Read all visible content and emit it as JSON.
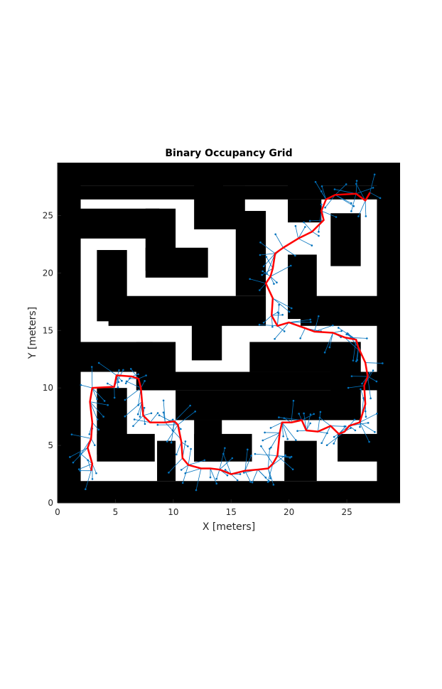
{
  "chart_data": {
    "type": "occupancy-grid-map",
    "title": "Binary Occupancy Grid",
    "xlabel": "X [meters]",
    "ylabel": "Y [meters]",
    "xlim": [
      0,
      29.6
    ],
    "ylim": [
      0,
      29.6
    ],
    "xticks": [
      0,
      5,
      10,
      15,
      20,
      25
    ],
    "yticks": [
      0,
      5,
      10,
      15,
      20,
      25
    ],
    "grid": false,
    "colors": {
      "occupied": "#000000",
      "free": "#ffffff",
      "tree": "#0072bd",
      "path": "#ff0000"
    },
    "obstacles": [
      {
        "shape": "rect",
        "x0": 0,
        "y0": 0,
        "x1": 29.6,
        "y1": 1.9
      },
      {
        "shape": "rect",
        "x0": 0,
        "y0": 27.6,
        "x1": 29.6,
        "y1": 29.6
      },
      {
        "shape": "rect",
        "x0": 0,
        "y0": 0,
        "x1": 2.0,
        "y1": 29.6
      },
      {
        "shape": "rect",
        "x0": 27.6,
        "y0": 0,
        "x1": 29.6,
        "y1": 29.6
      },
      {
        "shape": "rect",
        "x0": 0,
        "y0": 27.6,
        "x1": 29.6,
        "y1": 26.4
      },
      {
        "shape": "rect",
        "x0": 11.8,
        "y0": 29.6,
        "x1": 14.3,
        "y1": 26.4
      },
      {
        "shape": "rect",
        "x0": 19.9,
        "y0": 29.6,
        "x1": 22.8,
        "y1": 26.4
      },
      {
        "shape": "rect",
        "x0": 0,
        "y0": 25.6,
        "x1": 8.8,
        "y1": 23.0
      },
      {
        "shape": "rect",
        "x0": 7.6,
        "y0": 25.6,
        "x1": 10.2,
        "y1": 20.2
      },
      {
        "shape": "rect",
        "x0": 7.6,
        "y0": 22.2,
        "x1": 13.0,
        "y1": 19.6
      },
      {
        "shape": "rect",
        "x0": 11.8,
        "y0": 27.6,
        "x1": 16.2,
        "y1": 23.8
      },
      {
        "shape": "rect",
        "x0": 15.4,
        "y0": 25.4,
        "x1": 18.0,
        "y1": 18.0
      },
      {
        "shape": "rect",
        "x0": 4.4,
        "y0": 18.0,
        "x1": 18.0,
        "y1": 15.4
      },
      {
        "shape": "rect",
        "x0": 3.4,
        "y0": 22.0,
        "x1": 6.0,
        "y1": 15.8
      },
      {
        "shape": "rect",
        "x0": 19.9,
        "y0": 26.4,
        "x1": 22.8,
        "y1": 24.4
      },
      {
        "shape": "rect",
        "x0": 19.9,
        "y0": 21.6,
        "x1": 22.4,
        "y1": 16.0
      },
      {
        "shape": "rect",
        "x0": 21.0,
        "y0": 18.0,
        "x1": 29.6,
        "y1": 15.4
      },
      {
        "shape": "rect",
        "x0": 23.6,
        "y0": 25.2,
        "x1": 26.2,
        "y1": 20.6
      },
      {
        "shape": "rect",
        "x0": 11.6,
        "y0": 16.0,
        "x1": 14.2,
        "y1": 12.4
      },
      {
        "shape": "rect",
        "x0": 0,
        "y0": 14.0,
        "x1": 8.2,
        "y1": 11.4
      },
      {
        "shape": "rect",
        "x0": 6.8,
        "y0": 14.0,
        "x1": 10.2,
        "y1": 9.8
      },
      {
        "shape": "rect",
        "x0": 16.6,
        "y0": 14.0,
        "x1": 26.2,
        "y1": 11.4
      },
      {
        "shape": "rect",
        "x0": 23.6,
        "y0": 14.0,
        "x1": 26.2,
        "y1": 7.6
      },
      {
        "shape": "rect",
        "x0": 10.2,
        "y0": 9.8,
        "x1": 26.2,
        "y1": 7.2
      },
      {
        "shape": "rect",
        "x0": 7.4,
        "y0": 11.4,
        "x1": 28.0,
        "y1": 9.8
      },
      {
        "shape": "rect",
        "x0": 11.8,
        "y0": 7.2,
        "x1": 14.2,
        "y1": 3.6
      },
      {
        "shape": "rect",
        "x0": 11.8,
        "y0": 6.0,
        "x1": 16.8,
        "y1": 3.6
      },
      {
        "shape": "rect",
        "x0": 3.4,
        "y0": 10.0,
        "x1": 6.0,
        "y1": 4.2
      },
      {
        "shape": "rect",
        "x0": 3.4,
        "y0": 6.0,
        "x1": 8.4,
        "y1": 3.6
      },
      {
        "shape": "rect",
        "x0": 8.6,
        "y0": 5.4,
        "x1": 10.2,
        "y1": 1.9
      },
      {
        "shape": "rect",
        "x0": 19.6,
        "y0": 5.4,
        "x1": 22.4,
        "y1": 1.9
      },
      {
        "shape": "rect",
        "x0": 24.2,
        "y0": 6.0,
        "x1": 29.6,
        "y1": 3.6
      }
    ],
    "path": [
      [
        27.0,
        27.0
      ],
      [
        26.6,
        26.3
      ],
      [
        25.8,
        26.9
      ],
      [
        24.0,
        26.8
      ],
      [
        23.2,
        26.4
      ],
      [
        22.8,
        25.4
      ],
      [
        23.0,
        24.6
      ],
      [
        22.0,
        23.6
      ],
      [
        20.8,
        23.0
      ],
      [
        19.5,
        22.2
      ],
      [
        18.8,
        21.7
      ],
      [
        18.6,
        20.4
      ],
      [
        18.4,
        19.7
      ],
      [
        18.0,
        19.1
      ],
      [
        18.6,
        17.8
      ],
      [
        18.5,
        16.3
      ],
      [
        19.0,
        15.4
      ],
      [
        20.0,
        15.7
      ],
      [
        21.4,
        15.2
      ],
      [
        22.2,
        14.9
      ],
      [
        23.8,
        14.8
      ],
      [
        24.8,
        14.4
      ],
      [
        25.8,
        14.2
      ],
      [
        26.0,
        13.5
      ],
      [
        26.6,
        12.2
      ],
      [
        26.8,
        11.0
      ],
      [
        26.5,
        10.2
      ],
      [
        26.6,
        8.6
      ],
      [
        26.3,
        7.6
      ],
      [
        26.1,
        7.0
      ],
      [
        25.2,
        6.7
      ],
      [
        24.8,
        6.2
      ],
      [
        24.3,
        6.0
      ],
      [
        23.6,
        6.7
      ],
      [
        22.5,
        6.2
      ],
      [
        21.5,
        6.3
      ],
      [
        21.1,
        7.2
      ],
      [
        20.2,
        7.0
      ],
      [
        19.4,
        7.0
      ],
      [
        19.2,
        6.1
      ],
      [
        19.0,
        4.1
      ],
      [
        18.6,
        3.4
      ],
      [
        18.2,
        3.0
      ],
      [
        17.3,
        2.9
      ],
      [
        16.2,
        2.8
      ],
      [
        15.0,
        2.5
      ],
      [
        14.0,
        2.9
      ],
      [
        13.2,
        3.0
      ],
      [
        12.4,
        3.0
      ],
      [
        11.3,
        3.3
      ],
      [
        10.8,
        3.9
      ],
      [
        10.7,
        5.3
      ],
      [
        10.4,
        6.8
      ],
      [
        10.1,
        7.1
      ],
      [
        9.3,
        7.0
      ],
      [
        8.0,
        7.0
      ],
      [
        7.4,
        7.6
      ],
      [
        7.3,
        8.8
      ],
      [
        7.2,
        10.0
      ],
      [
        7.0,
        10.8
      ],
      [
        6.4,
        11.0
      ],
      [
        5.1,
        11.1
      ],
      [
        4.9,
        10.1
      ],
      [
        3.0,
        10.0
      ],
      [
        2.8,
        8.8
      ],
      [
        3.0,
        7.0
      ],
      [
        2.9,
        5.6
      ],
      [
        2.6,
        4.8
      ],
      [
        3.0,
        3.4
      ],
      [
        2.9,
        2.8
      ]
    ]
  }
}
